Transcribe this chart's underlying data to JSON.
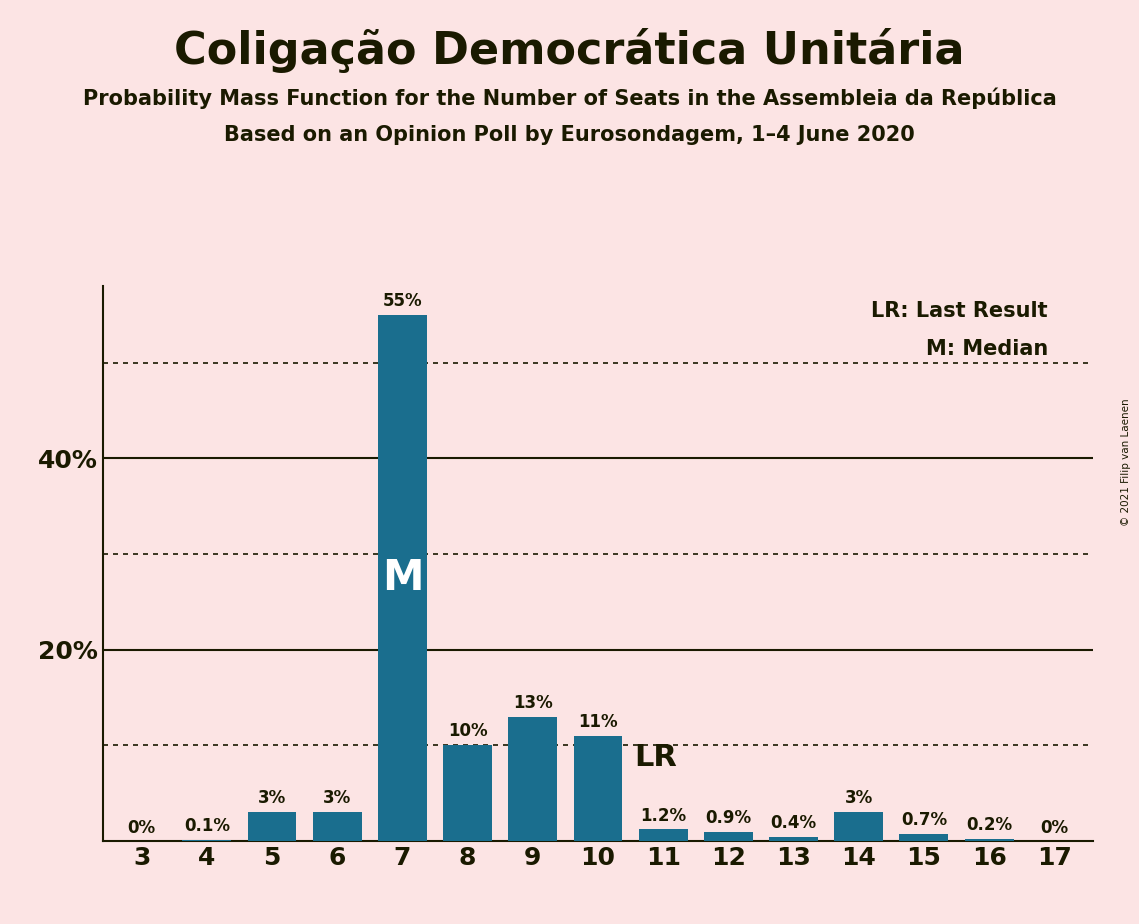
{
  "title": "Coligação Democrática Unitária",
  "subtitle1": "Probability Mass Function for the Number of Seats in the Assembleia da República",
  "subtitle2": "Based on an Opinion Poll by Eurosondagem, 1–4 June 2020",
  "copyright": "© 2021 Filip van Laenen",
  "categories": [
    3,
    4,
    5,
    6,
    7,
    8,
    9,
    10,
    11,
    12,
    13,
    14,
    15,
    16,
    17
  ],
  "values": [
    0.0,
    0.1,
    3.0,
    3.0,
    55.0,
    10.0,
    13.0,
    11.0,
    1.2,
    0.9,
    0.4,
    3.0,
    0.7,
    0.2,
    0.0
  ],
  "bar_labels": [
    "0%",
    "0.1%",
    "3%",
    "3%",
    "55%",
    "10%",
    "13%",
    "11%",
    "1.2%",
    "0.9%",
    "0.4%",
    "3%",
    "0.7%",
    "0.2%",
    "0%"
  ],
  "bar_color": "#1a6e8e",
  "background_color": "#fce4e4",
  "text_color": "#1a1a00",
  "median_bar": 7,
  "last_result_bar": 10,
  "yticks": [
    20,
    40
  ],
  "dotted_yticks": [
    10,
    30,
    50
  ],
  "ylim": [
    0,
    58
  ],
  "legend_lr": "LR: Last Result",
  "legend_m": "M: Median",
  "median_label": "M",
  "lr_label": "LR"
}
